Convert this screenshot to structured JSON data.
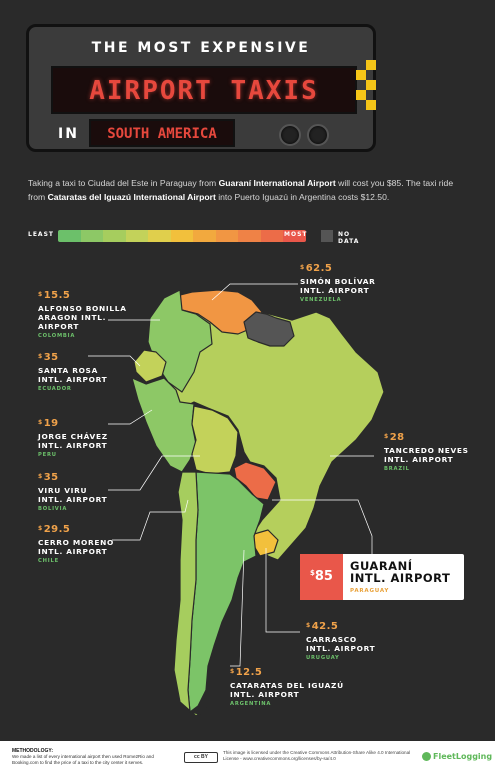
{
  "header": {
    "line1": "THE MOST EXPENSIVE",
    "line2": "AIRPORT TAXIS",
    "line3_prefix": "IN",
    "line3": "SOUTH AMERICA"
  },
  "intro": {
    "p1": "Taking a taxi to Ciudad del Este in Paraguay from ",
    "p1_bold": "Guaraní International Airport",
    "p1_end": " will cost you $85. The taxi ride from ",
    "p2_bold": "Cataratas del Iguazú International Airport",
    "p2_end": " into Puerto Iguazú in Argentina costs $12.50."
  },
  "legend": {
    "least": "LEAST",
    "most": "MOST",
    "no_data": "NO DATA",
    "scale_colors": [
      "#6cc06a",
      "#8dc866",
      "#a6cd5e",
      "#c3d25a",
      "#e0cf4c",
      "#f2c03c",
      "#f2a93e",
      "#f19643",
      "#ef8246",
      "#ec6c48",
      "#e9574a"
    ],
    "no_data_color": "#555555"
  },
  "airports": {
    "venezuela": {
      "currency": "$",
      "price": "62.5",
      "name": "SIMÓN BOLÍVAR\nINTL. AIRPORT",
      "country": "VENEZUELA"
    },
    "colombia": {
      "currency": "$",
      "price": "15.5",
      "name": "ALFONSO BONILLA\nARAGON INTL.\nAIRPORT",
      "country": "COLOMBIA"
    },
    "ecuador": {
      "currency": "$",
      "price": "35",
      "name": "SANTA ROSA\nINTL. AIRPORT",
      "country": "ECUADOR"
    },
    "peru": {
      "currency": "$",
      "price": "19",
      "name": "JORGE CHÁVEZ\nINTL. AIRPORT",
      "country": "PERU"
    },
    "brazil": {
      "currency": "$",
      "price": "28",
      "name": "TANCREDO NEVES\nINTL. AIRPORT",
      "country": "BRAZIL"
    },
    "bolivia": {
      "currency": "$",
      "price": "35",
      "name": "VIRU VIRU\nINTL. AIRPORT",
      "country": "BOLIVIA"
    },
    "chile": {
      "currency": "$",
      "price": "29.5",
      "name": "CERRO MORENO\nINTL. AIRPORT",
      "country": "CHILE"
    },
    "paraguay": {
      "currency": "$",
      "price": "85",
      "name": "GUARANÍ\nINTL. AIRPORT",
      "country": "PARAGUAY"
    },
    "uruguay": {
      "currency": "$",
      "price": "42.5",
      "name": "CARRASCO\nINTL. AIRPORT",
      "country": "URUGUAY"
    },
    "argentina": {
      "currency": "$",
      "price": "12.5",
      "name": "CATARATAS DEL IGUAZÚ\nINTL. AIRPORT",
      "country": "ARGENTINA"
    }
  },
  "map_colors": {
    "venezuela": "#f19643",
    "colombia": "#8dc866",
    "ecuador": "#c3d25a",
    "peru": "#8dc866",
    "brazil": "#b5cf5c",
    "bolivia": "#c3d25a",
    "chile": "#a6cd5e",
    "paraguay": "#ec6c48",
    "uruguay": "#f2c03c",
    "argentina": "#7cc468",
    "guianas": "#555555"
  },
  "footer": {
    "methodology_title": "METHODOLOGY:",
    "methodology": "We made a list of every international airport then used Rome2Rio and Booking.com to find the price of a taxi to the city center it serves.",
    "cc": "cc BY",
    "license": "This image is licensed under the Creative Commons Attribution-Share Alike 4.0 International License - www.creativecommons.org/licenses/by-sa/4.0",
    "logo": "FleetLogging"
  }
}
